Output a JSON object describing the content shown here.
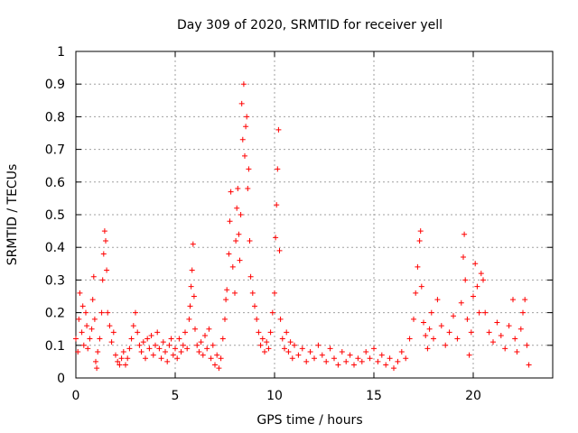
{
  "chart_data": {
    "type": "scatter",
    "title": "Day 309 of 2020, SRMTID for receiver yell",
    "xlabel": "GPS time / hours",
    "ylabel": "SRMTID / TECUs",
    "xlim": [
      0,
      24
    ],
    "ylim": [
      0,
      1
    ],
    "grid": true,
    "marker": "+",
    "color": "#ff0000",
    "x_ticks": [
      0,
      5,
      10,
      15,
      20
    ],
    "x_tick_labels": [
      "0",
      "5",
      "10",
      "15",
      "20"
    ],
    "y_ticks": [
      0,
      0.1,
      0.2,
      0.3,
      0.4,
      0.5,
      0.6,
      0.7,
      0.8,
      0.9,
      1
    ],
    "y_tick_labels": [
      "0",
      "0.1",
      "0.2",
      "0.3",
      "0.4",
      "0.5",
      "0.6",
      "0.7",
      "0.8",
      "0.9",
      "1"
    ],
    "series": [
      {
        "name": "SRMTID",
        "points": [
          [
            0.0,
            0.12
          ],
          [
            0.1,
            0.08
          ],
          [
            0.15,
            0.18
          ],
          [
            0.2,
            0.26
          ],
          [
            0.3,
            0.14
          ],
          [
            0.35,
            0.22
          ],
          [
            0.4,
            0.1
          ],
          [
            0.5,
            0.2
          ],
          [
            0.55,
            0.16
          ],
          [
            0.6,
            0.09
          ],
          [
            0.7,
            0.12
          ],
          [
            0.8,
            0.15
          ],
          [
            0.85,
            0.24
          ],
          [
            0.9,
            0.31
          ],
          [
            0.95,
            0.18
          ],
          [
            1.0,
            0.05
          ],
          [
            1.05,
            0.03
          ],
          [
            1.1,
            0.08
          ],
          [
            1.2,
            0.12
          ],
          [
            1.3,
            0.2
          ],
          [
            1.35,
            0.3
          ],
          [
            1.4,
            0.38
          ],
          [
            1.45,
            0.45
          ],
          [
            1.5,
            0.42
          ],
          [
            1.55,
            0.33
          ],
          [
            1.6,
            0.2
          ],
          [
            1.7,
            0.16
          ],
          [
            1.8,
            0.11
          ],
          [
            1.9,
            0.14
          ],
          [
            2.0,
            0.07
          ],
          [
            2.1,
            0.05
          ],
          [
            2.2,
            0.04
          ],
          [
            2.3,
            0.06
          ],
          [
            2.4,
            0.08
          ],
          [
            2.5,
            0.04
          ],
          [
            2.6,
            0.06
          ],
          [
            2.7,
            0.09
          ],
          [
            2.8,
            0.12
          ],
          [
            2.9,
            0.16
          ],
          [
            3.0,
            0.2
          ],
          [
            3.1,
            0.14
          ],
          [
            3.2,
            0.1
          ],
          [
            3.3,
            0.08
          ],
          [
            3.4,
            0.11
          ],
          [
            3.5,
            0.06
          ],
          [
            3.6,
            0.12
          ],
          [
            3.7,
            0.09
          ],
          [
            3.8,
            0.13
          ],
          [
            3.9,
            0.07
          ],
          [
            4.0,
            0.1
          ],
          [
            4.1,
            0.14
          ],
          [
            4.2,
            0.09
          ],
          [
            4.3,
            0.06
          ],
          [
            4.4,
            0.11
          ],
          [
            4.5,
            0.08
          ],
          [
            4.6,
            0.05
          ],
          [
            4.7,
            0.1
          ],
          [
            4.8,
            0.12
          ],
          [
            4.9,
            0.07
          ],
          [
            5.0,
            0.09
          ],
          [
            5.1,
            0.06
          ],
          [
            5.2,
            0.12
          ],
          [
            5.3,
            0.08
          ],
          [
            5.4,
            0.1
          ],
          [
            5.5,
            0.14
          ],
          [
            5.6,
            0.09
          ],
          [
            5.7,
            0.18
          ],
          [
            5.75,
            0.22
          ],
          [
            5.8,
            0.28
          ],
          [
            5.85,
            0.33
          ],
          [
            5.9,
            0.41
          ],
          [
            5.95,
            0.25
          ],
          [
            6.0,
            0.15
          ],
          [
            6.1,
            0.1
          ],
          [
            6.2,
            0.08
          ],
          [
            6.3,
            0.11
          ],
          [
            6.4,
            0.07
          ],
          [
            6.5,
            0.13
          ],
          [
            6.6,
            0.09
          ],
          [
            6.7,
            0.15
          ],
          [
            6.8,
            0.06
          ],
          [
            6.9,
            0.1
          ],
          [
            7.0,
            0.04
          ],
          [
            7.1,
            0.07
          ],
          [
            7.2,
            0.03
          ],
          [
            7.3,
            0.06
          ],
          [
            7.4,
            0.12
          ],
          [
            7.5,
            0.18
          ],
          [
            7.55,
            0.24
          ],
          [
            7.6,
            0.27
          ],
          [
            7.7,
            0.38
          ],
          [
            7.75,
            0.48
          ],
          [
            7.8,
            0.57
          ],
          [
            7.9,
            0.34
          ],
          [
            8.0,
            0.26
          ],
          [
            8.05,
            0.42
          ],
          [
            8.1,
            0.52
          ],
          [
            8.15,
            0.58
          ],
          [
            8.2,
            0.44
          ],
          [
            8.25,
            0.36
          ],
          [
            8.3,
            0.5
          ],
          [
            8.35,
            0.84
          ],
          [
            8.4,
            0.73
          ],
          [
            8.45,
            0.9
          ],
          [
            8.5,
            0.68
          ],
          [
            8.55,
            0.77
          ],
          [
            8.6,
            0.8
          ],
          [
            8.65,
            0.58
          ],
          [
            8.7,
            0.64
          ],
          [
            8.75,
            0.42
          ],
          [
            8.8,
            0.31
          ],
          [
            8.9,
            0.26
          ],
          [
            9.0,
            0.22
          ],
          [
            9.1,
            0.18
          ],
          [
            9.2,
            0.14
          ],
          [
            9.3,
            0.1
          ],
          [
            9.4,
            0.12
          ],
          [
            9.5,
            0.08
          ],
          [
            9.6,
            0.11
          ],
          [
            9.7,
            0.09
          ],
          [
            9.8,
            0.14
          ],
          [
            9.9,
            0.2
          ],
          [
            10.0,
            0.26
          ],
          [
            10.05,
            0.43
          ],
          [
            10.1,
            0.53
          ],
          [
            10.15,
            0.64
          ],
          [
            10.2,
            0.76
          ],
          [
            10.25,
            0.39
          ],
          [
            10.3,
            0.18
          ],
          [
            10.4,
            0.12
          ],
          [
            10.5,
            0.09
          ],
          [
            10.6,
            0.14
          ],
          [
            10.7,
            0.08
          ],
          [
            10.8,
            0.11
          ],
          [
            10.9,
            0.06
          ],
          [
            11.0,
            0.1
          ],
          [
            11.2,
            0.07
          ],
          [
            11.4,
            0.09
          ],
          [
            11.6,
            0.05
          ],
          [
            11.8,
            0.08
          ],
          [
            12.0,
            0.06
          ],
          [
            12.2,
            0.1
          ],
          [
            12.4,
            0.07
          ],
          [
            12.6,
            0.05
          ],
          [
            12.8,
            0.09
          ],
          [
            13.0,
            0.06
          ],
          [
            13.2,
            0.04
          ],
          [
            13.4,
            0.08
          ],
          [
            13.6,
            0.05
          ],
          [
            13.8,
            0.07
          ],
          [
            14.0,
            0.04
          ],
          [
            14.2,
            0.06
          ],
          [
            14.4,
            0.05
          ],
          [
            14.6,
            0.08
          ],
          [
            14.8,
            0.06
          ],
          [
            15.0,
            0.09
          ],
          [
            15.2,
            0.05
          ],
          [
            15.4,
            0.07
          ],
          [
            15.6,
            0.04
          ],
          [
            15.8,
            0.06
          ],
          [
            16.0,
            0.03
          ],
          [
            16.2,
            0.05
          ],
          [
            16.4,
            0.08
          ],
          [
            16.6,
            0.06
          ],
          [
            16.8,
            0.12
          ],
          [
            17.0,
            0.18
          ],
          [
            17.1,
            0.26
          ],
          [
            17.2,
            0.34
          ],
          [
            17.3,
            0.42
          ],
          [
            17.35,
            0.45
          ],
          [
            17.4,
            0.28
          ],
          [
            17.5,
            0.17
          ],
          [
            17.6,
            0.13
          ],
          [
            17.7,
            0.09
          ],
          [
            17.8,
            0.15
          ],
          [
            17.9,
            0.2
          ],
          [
            18.0,
            0.12
          ],
          [
            18.2,
            0.24
          ],
          [
            18.4,
            0.16
          ],
          [
            18.6,
            0.1
          ],
          [
            18.8,
            0.14
          ],
          [
            19.0,
            0.19
          ],
          [
            19.2,
            0.12
          ],
          [
            19.4,
            0.23
          ],
          [
            19.5,
            0.37
          ],
          [
            19.55,
            0.44
          ],
          [
            19.6,
            0.3
          ],
          [
            19.7,
            0.18
          ],
          [
            19.8,
            0.07
          ],
          [
            19.9,
            0.14
          ],
          [
            20.0,
            0.25
          ],
          [
            20.1,
            0.35
          ],
          [
            20.2,
            0.28
          ],
          [
            20.3,
            0.2
          ],
          [
            20.4,
            0.32
          ],
          [
            20.5,
            0.3
          ],
          [
            20.6,
            0.2
          ],
          [
            20.8,
            0.14
          ],
          [
            21.0,
            0.11
          ],
          [
            21.2,
            0.17
          ],
          [
            21.4,
            0.13
          ],
          [
            21.6,
            0.09
          ],
          [
            21.8,
            0.16
          ],
          [
            22.0,
            0.24
          ],
          [
            22.1,
            0.12
          ],
          [
            22.2,
            0.08
          ],
          [
            22.4,
            0.15
          ],
          [
            22.5,
            0.2
          ],
          [
            22.6,
            0.24
          ],
          [
            22.7,
            0.1
          ],
          [
            22.8,
            0.04
          ]
        ]
      }
    ]
  }
}
